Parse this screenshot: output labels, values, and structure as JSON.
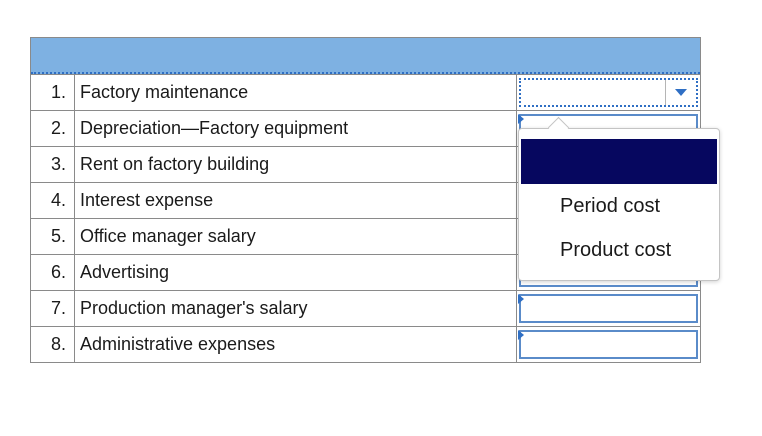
{
  "rows": [
    {
      "num": "1.",
      "label": "Factory maintenance"
    },
    {
      "num": "2.",
      "label": "Depreciation—Factory equipment"
    },
    {
      "num": "3.",
      "label": "Rent on factory building"
    },
    {
      "num": "4.",
      "label": "Interest expense"
    },
    {
      "num": "5.",
      "label": "Office manager salary"
    },
    {
      "num": "6.",
      "label": "Advertising"
    },
    {
      "num": "7.",
      "label": "Production manager's salary"
    },
    {
      "num": "8.",
      "label": "Administrative expenses"
    }
  ],
  "dropdown": {
    "options": [
      "",
      "Period cost",
      "Product cost"
    ],
    "highlight_color": "#06075f"
  },
  "colors": {
    "header_band": "#7eb1e2",
    "accent": "#2f6fc4"
  },
  "icons": {
    "dropdown_caret": "chevron-down-icon",
    "row_flag": "triangle-right-icon"
  }
}
